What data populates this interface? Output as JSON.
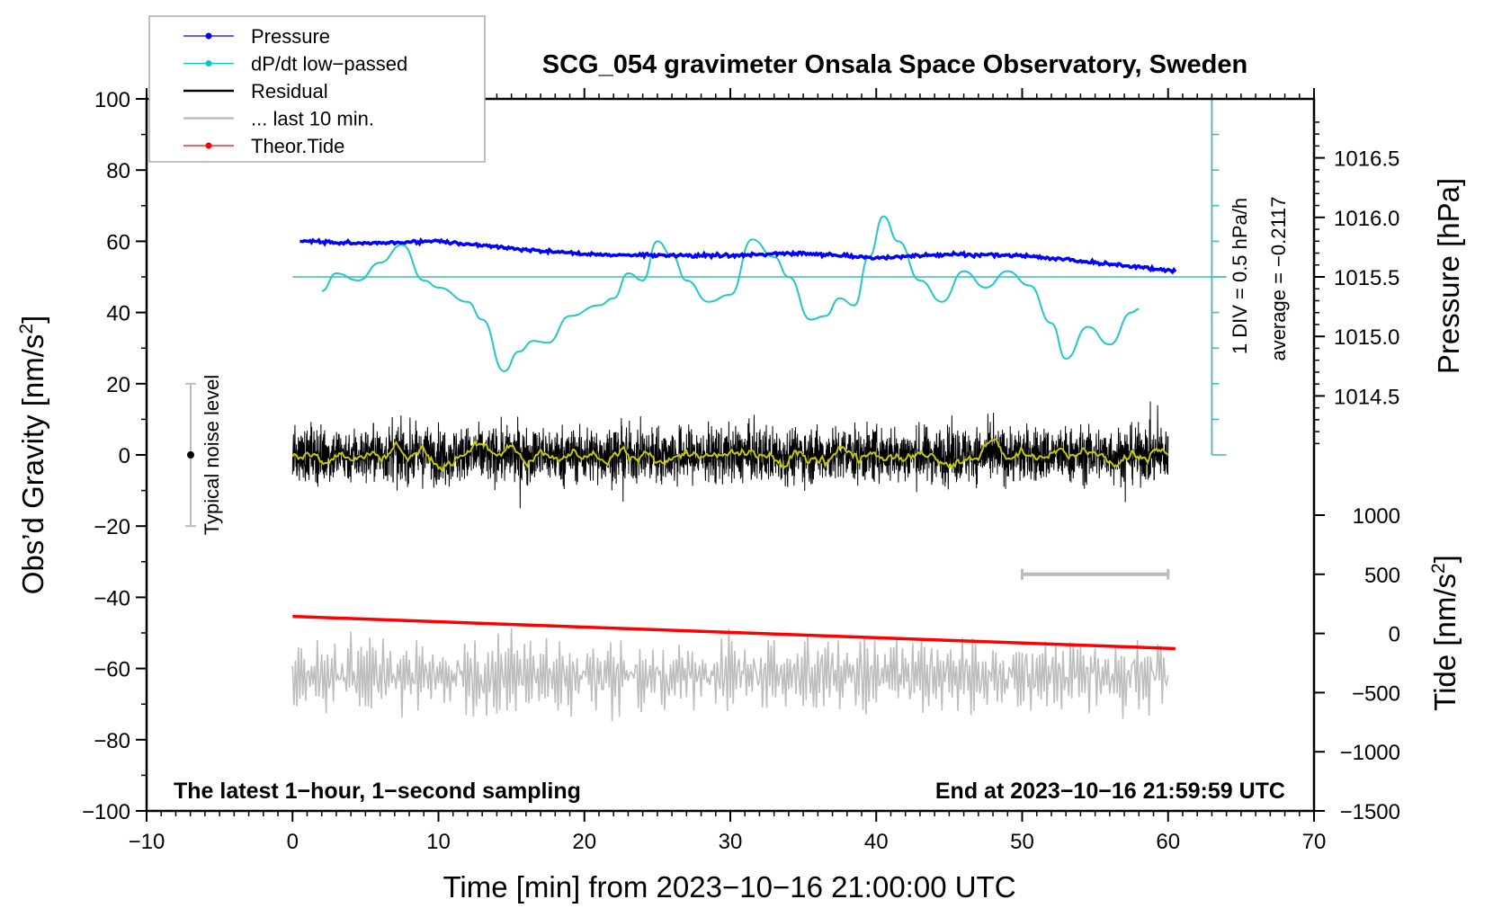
{
  "chart_data": {
    "type": "line",
    "title": "SCG_054 gravimeter Onsala Space Observatory, Sweden",
    "xlabel": "Time [min] from 2023−10−16 21:00:00 UTC",
    "ylabel": "Obs’d Gravity [nm/s",
    "ylabel_sup": "2",
    "ylabel_end": "]",
    "y2label": "Pressure [hPa]",
    "y3label": "Tide [nm/s",
    "y3label_sup": "2",
    "y3label_end": "]",
    "xlim": [
      -10,
      70
    ],
    "ylim": [
      -100,
      100
    ],
    "pressure_lim": [
      1014.0,
      1016.8
    ],
    "tide_lim": [
      -1500,
      1000
    ],
    "xticks": [
      -10,
      0,
      10,
      20,
      30,
      40,
      50,
      60,
      70
    ],
    "xtick_labels": [
      "−10",
      "0",
      "10",
      "20",
      "30",
      "40",
      "50",
      "60",
      "70"
    ],
    "yticks": [
      100,
      80,
      60,
      40,
      20,
      0,
      -20,
      -40,
      -60,
      -80,
      -100
    ],
    "ytick_labels": [
      "100",
      "80",
      "60",
      "40",
      "20",
      "0",
      "−20",
      "−40",
      "−60",
      "−80",
      "−100"
    ],
    "pressure_ticks": [
      1016.5,
      1016.0,
      1015.5,
      1015.0,
      1014.5
    ],
    "pressure_tick_labels": [
      "1016.5",
      "1016.0",
      "1015.5",
      "1015.0",
      "1014.5"
    ],
    "tide_ticks": [
      1000,
      500,
      0,
      -500,
      -1000,
      -1500
    ],
    "tide_tick_labels": [
      "1000",
      "500",
      "0",
      "−500",
      "−1000",
      "−1500"
    ],
    "legend": {
      "placement": "top-left",
      "entries": [
        {
          "label": "Pressure",
          "color": "#0000ff",
          "marker": true
        },
        {
          "label": "dP/dt low−passed",
          "color": "#00c8c8",
          "marker": true
        },
        {
          "label": "Residual",
          "color": "#000000",
          "marker": false
        },
        {
          "label": "... last 10 min.",
          "color": "#bebebe",
          "marker": false
        },
        {
          "label": "Theor.Tide",
          "color": "#ff0000",
          "marker": true
        }
      ]
    },
    "series": [
      {
        "name": "Pressure",
        "units": "hPa",
        "color": "#0000ff",
        "x": [
          0.5,
          5,
          10,
          15,
          20,
          25,
          30,
          35,
          40,
          45,
          50,
          55,
          60.5
        ],
        "values": [
          1015.8,
          1015.78,
          1015.8,
          1015.74,
          1015.69,
          1015.68,
          1015.68,
          1015.7,
          1015.66,
          1015.69,
          1015.68,
          1015.62,
          1015.55
        ]
      },
      {
        "name": "dP/dt low-passed",
        "units": "gravity-axis equivalent (zero line at 50, 1 DIV = 10)",
        "color": "#20c8c8",
        "x": [
          2,
          3,
          4.5,
          6,
          7.5,
          9,
          10,
          12,
          13,
          14.5,
          15.5,
          16.5,
          17.5,
          19,
          21,
          22,
          23,
          24,
          25,
          26,
          27,
          28.5,
          30,
          31.5,
          33,
          34,
          35.5,
          36.5,
          37.5,
          38.5,
          39.5,
          40.5,
          41.5,
          43,
          44.5,
          46,
          47.5,
          49,
          50.5,
          52,
          53,
          54.5,
          56,
          57.5,
          58
        ],
        "values": [
          46,
          51,
          49,
          54,
          59,
          49,
          47,
          43,
          38,
          23.5,
          29,
          32,
          31.5,
          39,
          42,
          44,
          51,
          49,
          60,
          56,
          49,
          43,
          45,
          60.5,
          55.6,
          50,
          38,
          39,
          44,
          42,
          55.6,
          67,
          60,
          49,
          43,
          51.6,
          47,
          51.6,
          47.6,
          37,
          27,
          36,
          31,
          40,
          41
        ]
      },
      {
        "name": "Residual",
        "color": "#000000",
        "x_range": [
          0,
          60
        ],
        "mean": 0,
        "typical_amplitude": 7,
        "peak": 15
      },
      {
        "name": "Residual smoothed",
        "color": "#c8c800",
        "x_range": [
          0,
          60
        ],
        "typical_amplitude": 2
      },
      {
        "name": "... last 10 min.",
        "color": "#bebebe",
        "x_range": [
          0,
          60
        ],
        "center": -62,
        "typical_amplitude": 10
      },
      {
        "name": "Theor.Tide",
        "units": "nm/s2",
        "color": "#ff0000",
        "x": [
          0,
          60.5
        ],
        "values": [
          144,
          -128
        ]
      }
    ],
    "cyan_scale": {
      "zero_level": 50,
      "div_units": 10,
      "x": 63,
      "range": [
        0,
        100
      ]
    },
    "annotations": {
      "div": "1 DIV = 0.5 hPa/h",
      "average": "average = −0.2117",
      "noise": "Typical noise level",
      "noise_range": [
        -20,
        20
      ],
      "bottom_left": "The latest 1−hour, 1−second sampling",
      "bottom_right": "End at 2023−10−16 21:59:59 UTC",
      "scale_bar": {
        "x": [
          50,
          60
        ],
        "tide": 500
      }
    }
  }
}
